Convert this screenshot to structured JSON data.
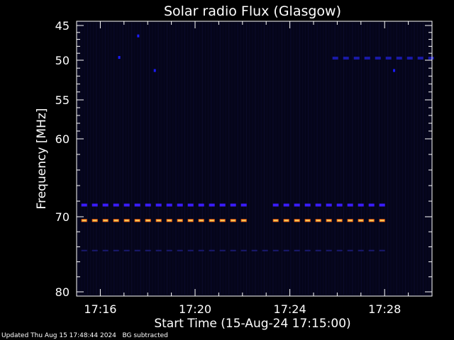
{
  "chart_data": {
    "type": "heatmap",
    "title": "Solar radio Flux (Glasgow)",
    "xlabel": "Start Time (15-Aug-24 17:15:00)",
    "ylabel": "Frequency [MHz]",
    "x_tick_labels": [
      "17:16",
      "17:20",
      "17:24",
      "17:28"
    ],
    "x_ticks_minutes_after_start": [
      1,
      5,
      9,
      13
    ],
    "xlim_minutes_after_start": [
      0,
      15
    ],
    "y_tick_labels": [
      "45",
      "50",
      "55",
      "60",
      "70",
      "80"
    ],
    "y_ticks_mhz": [
      45,
      50,
      55,
      60,
      70,
      80
    ],
    "ylim_mhz": [
      45,
      80
    ],
    "y_axis_orientation": "inverted (low frequency at top)",
    "background_color": "#05051a",
    "features": [
      {
        "kind": "dashed-band",
        "frequency_mhz": 68.5,
        "color": "#3a1cff",
        "t_start": 0.2,
        "t_end": 13.0,
        "gap": [
          7.3,
          8.1
        ]
      },
      {
        "kind": "dashed-band",
        "frequency_mhz": 70.5,
        "color": "#ff6a10",
        "t_start": 0.2,
        "t_end": 13.0,
        "gap": [
          7.3,
          8.1
        ]
      },
      {
        "kind": "dashed-band",
        "frequency_mhz": 74.5,
        "color": "#1a1a70",
        "t_start": 0.2,
        "t_end": 13.0,
        "gap": []
      },
      {
        "kind": "dashed-band",
        "frequency_mhz": 49.7,
        "color": "#1a1aa8",
        "t_start": 10.8,
        "t_end": 15.0,
        "gap": []
      },
      {
        "kind": "spot",
        "frequency_mhz": 46.5,
        "color": "#1c1cff",
        "t": 2.6
      },
      {
        "kind": "spot",
        "frequency_mhz": 51.3,
        "color": "#1c1cff",
        "t": 3.3
      },
      {
        "kind": "spot",
        "frequency_mhz": 51.3,
        "color": "#1c1cff",
        "t": 13.4
      },
      {
        "kind": "spot",
        "frequency_mhz": 49.6,
        "color": "#1c1cff",
        "t": 1.8
      }
    ]
  },
  "footer": {
    "updated": "Updated Thu Aug 15 17:48:44 2024",
    "note": "BG subtracted"
  },
  "colors": {
    "axis": "#ffffff",
    "plot_bg": "#05051a",
    "page_bg": "#000000"
  }
}
